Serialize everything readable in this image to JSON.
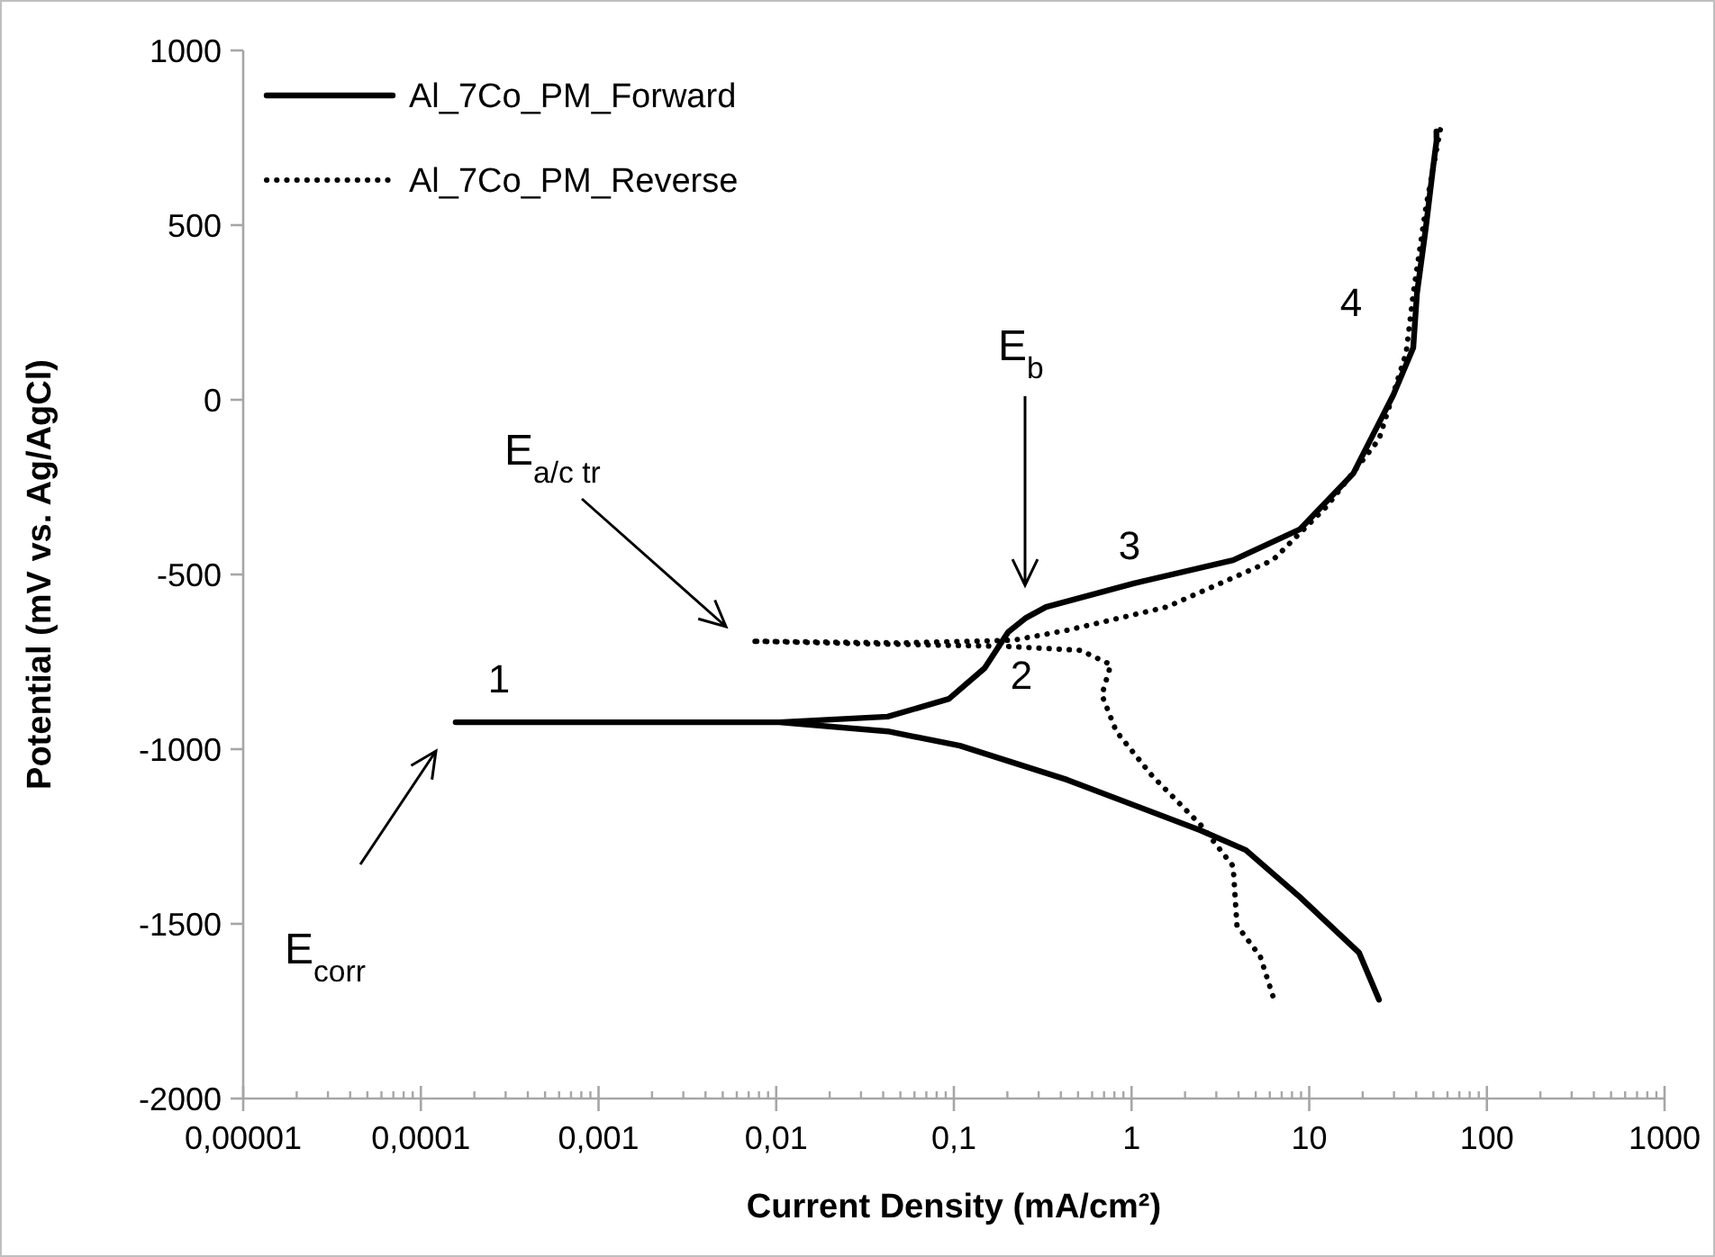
{
  "chart_data": {
    "type": "line",
    "xlabel": "Current Density (mA/cm²)",
    "ylabel": "Potential (mV vs. Ag/AgCl)",
    "log": "x",
    "xlim": [
      1e-05,
      1000
    ],
    "ylim": [
      -2000,
      1000
    ],
    "xticks": [
      {
        "value": 1e-05,
        "label": "0,00001"
      },
      {
        "value": 0.0001,
        "label": "0,0001"
      },
      {
        "value": 0.001,
        "label": "0,001"
      },
      {
        "value": 0.01,
        "label": "0,01"
      },
      {
        "value": 0.1,
        "label": "0,1"
      },
      {
        "value": 1,
        "label": "1"
      },
      {
        "value": 10,
        "label": "10"
      },
      {
        "value": 100,
        "label": "100"
      },
      {
        "value": 1000,
        "label": "1000"
      }
    ],
    "yticks": [
      -2000,
      -1500,
      -1000,
      -500,
      0,
      500,
      1000
    ],
    "grid": false,
    "legend": "top left",
    "series": [
      {
        "name": "Al_7Co_PM_Forward",
        "color": "#000000",
        "line_style": "solid",
        "x": [
          24.7,
          19.1,
          8.85,
          4.4,
          2.43,
          0.436,
          0.108,
          0.0424,
          0.0104,
          0.000157,
          0.0104,
          0.0424,
          0.0938,
          0.149,
          0.202,
          0.255,
          0.33,
          1.02,
          3.73,
          8.85,
          17.7,
          29.8,
          38.5,
          40.4,
          45.4,
          49.8,
          52.1,
          52
        ],
        "values": [
          -1717,
          -1583,
          -1423,
          -1289,
          -1232,
          -1088,
          -990,
          -949,
          -923,
          -923,
          -923,
          -907,
          -856,
          -768,
          -665,
          -624,
          -593,
          -526,
          -459,
          -371,
          -211,
          15,
          149,
          304,
          495,
          665,
          742,
          768
        ]
      },
      {
        "name": "Al_7Co_PM_Reverse",
        "color": "#000000",
        "line_style": "dotted",
        "x": [
          54.7,
          45.4,
          38.5,
          35.1,
          24.7,
          12.6,
          6.24,
          1.58,
          0.431,
          0.217,
          0.0499,
          0.0072,
          0.0313,
          0.202,
          0.514,
          0.764,
          0.681,
          0.82,
          1.31,
          2.45,
          3.73,
          3.92,
          5.3,
          6.24
        ],
        "values": [
          773,
          552,
          304,
          134,
          -113,
          -304,
          -459,
          -593,
          -660,
          -688,
          -696,
          -691,
          -698,
          -706,
          -717,
          -758,
          -845,
          -949,
          -1077,
          -1217,
          -1335,
          -1505,
          -1593,
          -1706
        ]
      }
    ],
    "annotations": [
      "E$_{corr}$",
      "E$_{a/c tr}$",
      "E$_{b}$",
      "1",
      "2",
      "3",
      "4"
    ]
  }
}
